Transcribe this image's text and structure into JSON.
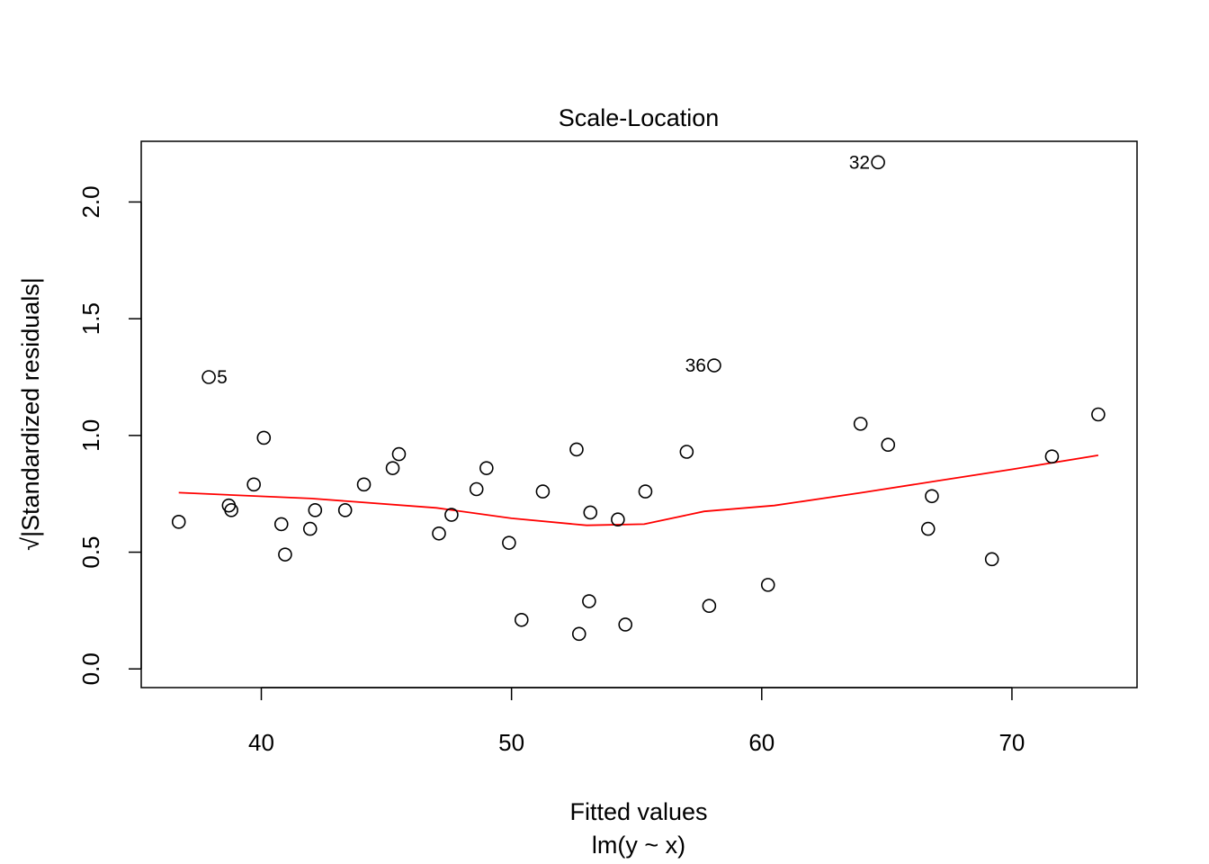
{
  "chart_data": {
    "type": "scatter",
    "title": "Scale-Location",
    "xlabel": "Fitted values",
    "subtitle": "lm(y ~ x)",
    "ylabel": "√|Standardized residuals|",
    "xlim": [
      35.2,
      75.0
    ],
    "ylim": [
      -0.08,
      2.26
    ],
    "x_ticks": [
      40,
      50,
      60,
      70
    ],
    "y_ticks": [
      0.0,
      0.5,
      1.0,
      1.5,
      2.0
    ],
    "x_tick_labels": [
      "40",
      "50",
      "60",
      "70"
    ],
    "y_tick_labels": [
      "0.0",
      "0.5",
      "1.0",
      "1.5",
      "2.0"
    ],
    "grid": false,
    "colors": {
      "points": "#000000",
      "smoother": "#ff0000"
    },
    "points": [
      {
        "x": 36.7,
        "y": 0.63
      },
      {
        "x": 37.9,
        "y": 1.25,
        "label": "5",
        "label_side": "right"
      },
      {
        "x": 38.7,
        "y": 0.7
      },
      {
        "x": 38.8,
        "y": 0.68
      },
      {
        "x": 39.7,
        "y": 0.79
      },
      {
        "x": 40.1,
        "y": 0.99
      },
      {
        "x": 40.8,
        "y": 0.62
      },
      {
        "x": 40.95,
        "y": 0.49
      },
      {
        "x": 41.95,
        "y": 0.6
      },
      {
        "x": 42.15,
        "y": 0.68
      },
      {
        "x": 43.35,
        "y": 0.68
      },
      {
        "x": 44.1,
        "y": 0.79
      },
      {
        "x": 45.25,
        "y": 0.86
      },
      {
        "x": 45.5,
        "y": 0.92
      },
      {
        "x": 47.1,
        "y": 0.58
      },
      {
        "x": 47.6,
        "y": 0.66
      },
      {
        "x": 48.6,
        "y": 0.77
      },
      {
        "x": 49.0,
        "y": 0.86
      },
      {
        "x": 49.9,
        "y": 0.54
      },
      {
        "x": 50.4,
        "y": 0.21
      },
      {
        "x": 51.25,
        "y": 0.76
      },
      {
        "x": 52.6,
        "y": 0.94
      },
      {
        "x": 52.7,
        "y": 0.15
      },
      {
        "x": 53.1,
        "y": 0.29
      },
      {
        "x": 53.15,
        "y": 0.67
      },
      {
        "x": 54.25,
        "y": 0.64
      },
      {
        "x": 54.55,
        "y": 0.19
      },
      {
        "x": 55.35,
        "y": 0.76
      },
      {
        "x": 57.0,
        "y": 0.93
      },
      {
        "x": 57.9,
        "y": 0.27
      },
      {
        "x": 58.1,
        "y": 1.3,
        "label": "36",
        "label_side": "left"
      },
      {
        "x": 60.25,
        "y": 0.36
      },
      {
        "x": 63.95,
        "y": 1.05
      },
      {
        "x": 64.65,
        "y": 2.17,
        "label": "32",
        "label_side": "left"
      },
      {
        "x": 65.05,
        "y": 0.96
      },
      {
        "x": 66.65,
        "y": 0.6
      },
      {
        "x": 66.8,
        "y": 0.74
      },
      {
        "x": 69.2,
        "y": 0.47
      },
      {
        "x": 71.6,
        "y": 0.91
      },
      {
        "x": 73.45,
        "y": 1.09
      }
    ],
    "smoother": [
      {
        "x": 36.7,
        "y": 0.755
      },
      {
        "x": 42.0,
        "y": 0.73
      },
      {
        "x": 47.0,
        "y": 0.69
      },
      {
        "x": 50.0,
        "y": 0.645
      },
      {
        "x": 53.0,
        "y": 0.615
      },
      {
        "x": 55.3,
        "y": 0.62
      },
      {
        "x": 57.7,
        "y": 0.675
      },
      {
        "x": 60.5,
        "y": 0.7
      },
      {
        "x": 64.0,
        "y": 0.755
      },
      {
        "x": 67.0,
        "y": 0.805
      },
      {
        "x": 70.0,
        "y": 0.855
      },
      {
        "x": 73.45,
        "y": 0.915
      }
    ]
  }
}
